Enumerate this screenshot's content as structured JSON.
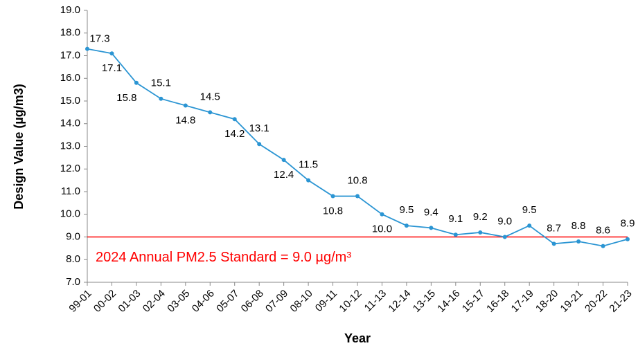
{
  "chart_data": {
    "type": "line",
    "x_label": "Year",
    "y_label": "Design Value (µg/m3)",
    "categories": [
      "99-01",
      "00-02",
      "01-03",
      "02-04",
      "03-05",
      "04-06",
      "05-07",
      "06-08",
      "07-09",
      "08-10",
      "09-11",
      "10-12",
      "11-13",
      "12-14",
      "13-15",
      "14-16",
      "15-17",
      "16-18",
      "17-19",
      "18-20",
      "19-21",
      "20-22",
      "21-23"
    ],
    "values": [
      17.3,
      17.1,
      15.8,
      15.1,
      14.8,
      14.5,
      14.2,
      13.1,
      12.4,
      11.5,
      10.8,
      10.8,
      10.0,
      9.5,
      9.4,
      9.1,
      9.2,
      9.0,
      9.5,
      8.7,
      8.8,
      8.6,
      8.9
    ],
    "value_labels": [
      "17.3",
      "17.1",
      "15.8",
      "15.1",
      "14.8",
      "14.5",
      "14.2",
      "13.1",
      "12.4",
      "11.5",
      "10.8",
      "10.8",
      "10.0",
      "9.5",
      "9.4",
      "9.1",
      "9.2",
      "9.0",
      "9.5",
      "8.7",
      "8.8",
      "8.6",
      "8.9"
    ],
    "color": "#2b95d3",
    "ylim": [
      7,
      19
    ],
    "yticks": [
      {
        "value": 7,
        "label": "7.0"
      },
      {
        "value": 8,
        "label": "8.0"
      },
      {
        "value": 9,
        "label": "9.0"
      },
      {
        "value": 10,
        "label": "10.0"
      },
      {
        "value": 11,
        "label": "11.0"
      },
      {
        "value": 12,
        "label": "12.0"
      },
      {
        "value": 13,
        "label": "13.0"
      },
      {
        "value": 14,
        "label": "14.0"
      },
      {
        "value": 15,
        "label": "15.0"
      },
      {
        "value": 16,
        "label": "16.0"
      },
      {
        "value": 17,
        "label": "17.0"
      },
      {
        "value": 18,
        "label": "18.0"
      },
      {
        "value": 19,
        "label": "19.0"
      }
    ],
    "reference_line": {
      "value": 9,
      "label": "2024 Annual PM2.5 Standard = 9.0 µg/m³",
      "color": "#ff0000"
    },
    "grid": false
  }
}
